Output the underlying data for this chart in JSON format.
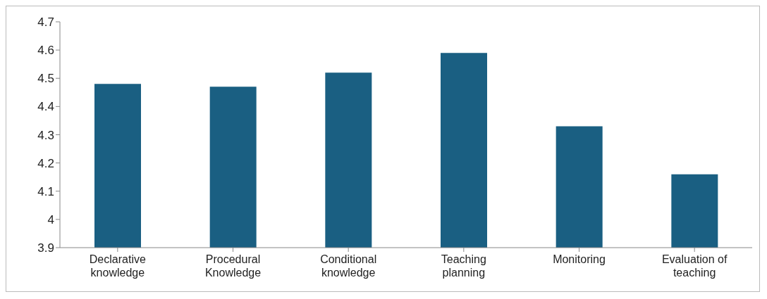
{
  "chart_data": {
    "type": "bar",
    "categories": [
      "Declarative knowledge",
      "Procedural Knowledge",
      "Conditional knowledge",
      "Teaching planning",
      "Monitoring",
      "Evaluation of teaching"
    ],
    "values": [
      4.48,
      4.47,
      4.52,
      4.59,
      4.33,
      4.16
    ],
    "color": "#1a5f82",
    "ylim": [
      3.9,
      4.7
    ],
    "yticks": [
      3.9,
      4,
      4.1,
      4.2,
      4.3,
      4.4,
      4.5,
      4.6,
      4.7
    ],
    "grid": false
  }
}
